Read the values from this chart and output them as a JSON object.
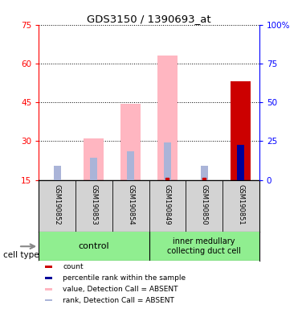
{
  "title": "GDS3150 / 1390693_at",
  "samples": [
    "GSM190852",
    "GSM190853",
    "GSM190854",
    "GSM190849",
    "GSM190850",
    "GSM190851"
  ],
  "value_absent": [
    null,
    31.0,
    44.5,
    63.0,
    null,
    null
  ],
  "rank_absent": [
    20.5,
    23.5,
    26.0,
    29.5,
    20.5,
    null
  ],
  "count": [
    null,
    null,
    null,
    null,
    null,
    53.0
  ],
  "percentile_rank": [
    null,
    null,
    null,
    null,
    null,
    28.5
  ],
  "small_count": [
    null,
    null,
    null,
    15.2,
    15.2,
    null
  ],
  "small_percentile": [
    16.5,
    null,
    15.5,
    null,
    null,
    null
  ],
  "ylim_left": [
    15,
    75
  ],
  "ylim_right": [
    0,
    100
  ],
  "yticks_left": [
    15,
    30,
    45,
    60,
    75
  ],
  "yticks_right": [
    0,
    25,
    50,
    75,
    100
  ],
  "yticklabels_right": [
    "0",
    "25",
    "50",
    "75",
    "100%"
  ],
  "bar_width": 0.55,
  "rank_bar_width": 0.2,
  "color_value_absent": "#ffb6c1",
  "color_rank_absent": "#aab4d8",
  "color_count": "#cc0000",
  "color_percentile": "#000099",
  "bg_plot": "#d3d3d3",
  "bg_group": "#90ee90",
  "group1_label": "control",
  "group2_label": "inner medullary\ncollecting duct cell",
  "cell_type_label": "cell type",
  "legend_items": [
    [
      "#cc0000",
      "count"
    ],
    [
      "#000099",
      "percentile rank within the sample"
    ],
    [
      "#ffb6c1",
      "value, Detection Call = ABSENT"
    ],
    [
      "#aab4d8",
      "rank, Detection Call = ABSENT"
    ]
  ]
}
